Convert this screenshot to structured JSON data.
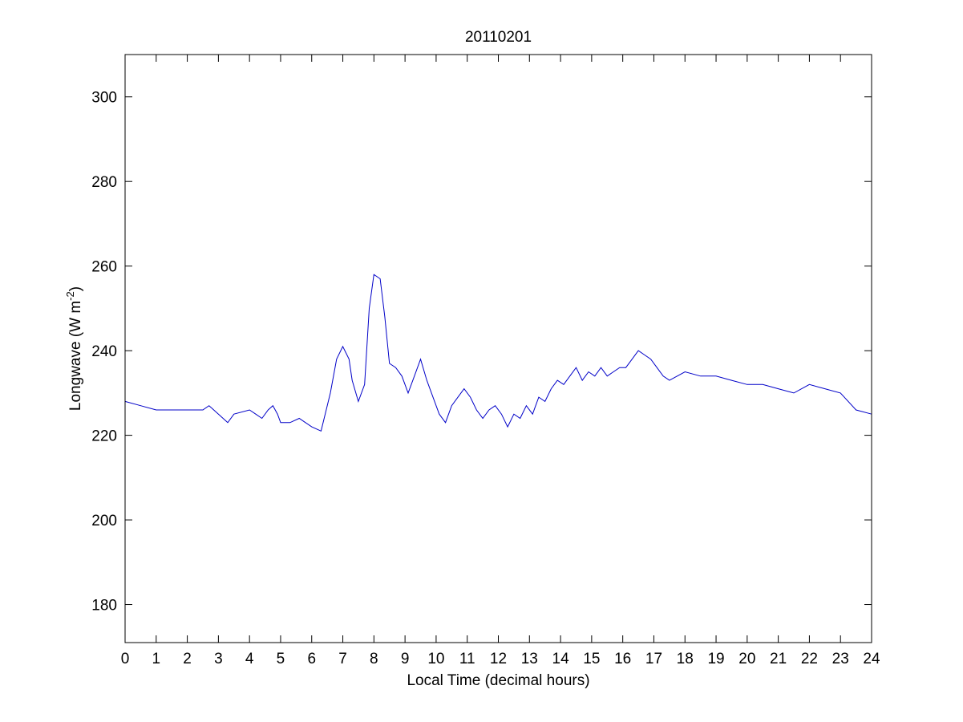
{
  "chart_data": {
    "type": "line",
    "title": "20110201",
    "xlabel": "Local Time (decimal hours)",
    "ylabel_main": "Longwave (W m",
    "ylabel_sup": "-2",
    "ylabel_end": ")",
    "xlim": [
      0,
      24
    ],
    "ylim": [
      171,
      310
    ],
    "xticks": [
      0,
      1,
      2,
      3,
      4,
      5,
      6,
      7,
      8,
      9,
      10,
      11,
      12,
      13,
      14,
      15,
      16,
      17,
      18,
      19,
      20,
      21,
      22,
      23,
      24
    ],
    "yticks": [
      180,
      200,
      220,
      240,
      260,
      280,
      300
    ],
    "grid": false,
    "line_color": "#0000c8",
    "series": [
      {
        "x": [
          0,
          0.5,
          1,
          1.5,
          2,
          2.5,
          2.7,
          3,
          3.3,
          3.5,
          4,
          4.2,
          4.4,
          4.6,
          4.75,
          4.9,
          5,
          5.3,
          5.6,
          5.8,
          6,
          6.3,
          6.6,
          6.8,
          7,
          7.2,
          7.3,
          7.5,
          7.7,
          7.85,
          8,
          8.2,
          8.35,
          8.5,
          8.7,
          8.9,
          9.1,
          9.3,
          9.5,
          9.7,
          9.9,
          10.1,
          10.3,
          10.5,
          10.7,
          10.9,
          11.1,
          11.3,
          11.5,
          11.7,
          11.9,
          12.1,
          12.3,
          12.5,
          12.7,
          12.9,
          13.1,
          13.3,
          13.5,
          13.7,
          13.9,
          14.1,
          14.3,
          14.5,
          14.7,
          14.9,
          15.1,
          15.3,
          15.5,
          15.7,
          15.9,
          16.1,
          16.3,
          16.5,
          16.7,
          16.9,
          17.1,
          17.3,
          17.5,
          18,
          18.5,
          19,
          19.5,
          20,
          20.5,
          21,
          21.5,
          22,
          22.5,
          23,
          23.5,
          24
        ],
        "y": [
          228,
          227,
          226,
          226,
          226,
          226,
          227,
          225,
          223,
          225,
          226,
          225,
          224,
          226,
          227,
          225,
          223,
          223,
          224,
          223,
          222,
          221,
          230,
          238,
          241,
          238,
          233,
          228,
          232,
          250,
          258,
          257,
          248,
          237,
          236,
          234,
          230,
          234,
          238,
          233,
          229,
          225,
          223,
          227,
          229,
          231,
          229,
          226,
          224,
          226,
          227,
          225,
          222,
          225,
          224,
          227,
          225,
          229,
          228,
          231,
          233,
          232,
          234,
          236,
          233,
          235,
          234,
          236,
          234,
          235,
          236,
          236,
          238,
          240,
          239,
          238,
          236,
          234,
          233,
          235,
          234,
          234,
          233,
          232,
          232,
          231,
          230,
          232,
          231,
          230,
          226,
          225
        ]
      }
    ]
  }
}
